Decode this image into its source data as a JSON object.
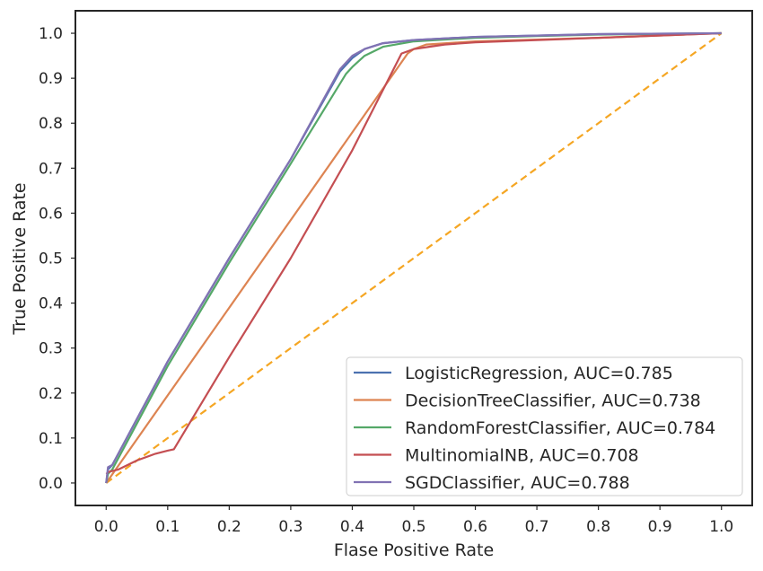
{
  "chart_data": {
    "type": "line",
    "title": "",
    "xlabel": "Flase Positive Rate",
    "ylabel": "True Positive Rate",
    "xlim": [
      -0.05,
      1.05
    ],
    "ylim": [
      -0.05,
      1.05
    ],
    "xticks": [
      "0.0",
      "0.1",
      "0.2",
      "0.3",
      "0.4",
      "0.5",
      "0.6",
      "0.7",
      "0.8",
      "0.9",
      "1.0"
    ],
    "yticks": [
      "0.0",
      "0.1",
      "0.2",
      "0.3",
      "0.4",
      "0.5",
      "0.6",
      "0.7",
      "0.8",
      "0.9",
      "1.0"
    ],
    "grid": false,
    "legend_position": "bottom-right",
    "series": [
      {
        "name": "LogisticRegression, AUC=0.785",
        "color": "#4c72b0",
        "x": [
          0.0,
          0.003,
          0.01,
          0.1,
          0.2,
          0.3,
          0.38,
          0.39,
          0.4,
          0.42,
          0.45,
          0.5,
          0.6,
          0.7,
          0.8,
          1.0
        ],
        "y": [
          0.0,
          0.03,
          0.04,
          0.27,
          0.5,
          0.72,
          0.915,
          0.93,
          0.945,
          0.965,
          0.978,
          0.985,
          0.992,
          0.995,
          0.998,
          1.0
        ]
      },
      {
        "name": "DecisionTreeClassifier, AUC=0.738",
        "color": "#dd8452",
        "x": [
          0.0,
          0.49,
          0.5,
          0.52,
          0.6,
          0.7,
          0.8,
          1.0
        ],
        "y": [
          0.0,
          0.955,
          0.965,
          0.975,
          0.982,
          0.986,
          0.99,
          1.0
        ]
      },
      {
        "name": "RandomForestClassifier, AUC=0.784",
        "color": "#55a868",
        "x": [
          0.0,
          0.003,
          0.01,
          0.1,
          0.2,
          0.3,
          0.39,
          0.4,
          0.42,
          0.45,
          0.5,
          0.6,
          0.7,
          0.8,
          1.0
        ],
        "y": [
          0.0,
          0.02,
          0.03,
          0.26,
          0.49,
          0.71,
          0.91,
          0.925,
          0.95,
          0.97,
          0.982,
          0.99,
          0.994,
          0.997,
          1.0
        ]
      },
      {
        "name": "MultinomialNB, AUC=0.708",
        "color": "#c44e52",
        "x": [
          0.0,
          0.005,
          0.02,
          0.05,
          0.08,
          0.1,
          0.11,
          0.2,
          0.3,
          0.4,
          0.48,
          0.5,
          0.55,
          0.6,
          0.7,
          0.8,
          1.0
        ],
        "y": [
          0.02,
          0.025,
          0.03,
          0.05,
          0.065,
          0.072,
          0.075,
          0.28,
          0.5,
          0.74,
          0.955,
          0.965,
          0.975,
          0.98,
          0.985,
          0.99,
          1.0
        ]
      },
      {
        "name": "SGDClassifier, AUC=0.788",
        "color": "#8172b3",
        "x": [
          0.0,
          0.003,
          0.01,
          0.1,
          0.2,
          0.3,
          0.38,
          0.4,
          0.42,
          0.45,
          0.5,
          0.6,
          0.7,
          0.8,
          1.0
        ],
        "y": [
          0.0,
          0.035,
          0.04,
          0.27,
          0.5,
          0.72,
          0.92,
          0.95,
          0.965,
          0.978,
          0.985,
          0.992,
          0.995,
          0.998,
          1.0
        ]
      },
      {
        "name": "",
        "color": "#f5a623",
        "dashed": true,
        "x": [
          0.0,
          1.0
        ],
        "y": [
          0.0,
          1.0
        ]
      }
    ]
  }
}
